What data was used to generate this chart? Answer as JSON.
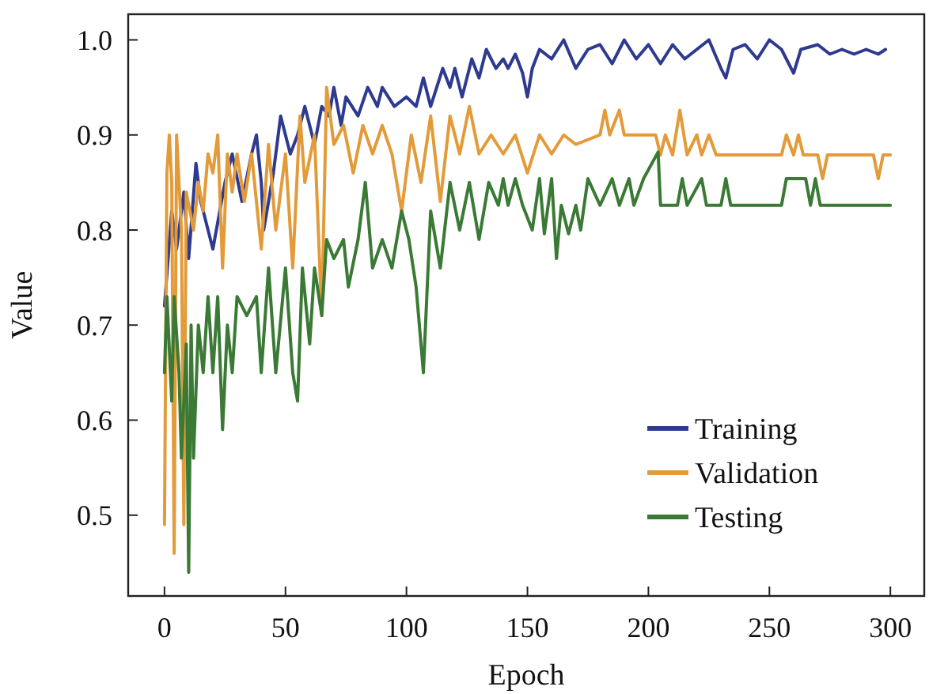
{
  "chart_data": {
    "type": "line",
    "xlabel": "Epoch",
    "ylabel": "Value",
    "xlim": [
      -15,
      314
    ],
    "ylim": [
      0.415,
      1.027
    ],
    "xticks": [
      0,
      50,
      100,
      150,
      200,
      250,
      300
    ],
    "yticks": [
      {
        "value": 0.5,
        "label": "0.5"
      },
      {
        "value": 0.6,
        "label": "0.6"
      },
      {
        "value": 0.7,
        "label": "0.7"
      },
      {
        "value": 0.8,
        "label": "0.8"
      },
      {
        "value": 0.9,
        "label": "0.9"
      },
      {
        "value": 1.0,
        "label": "1.0"
      }
    ],
    "grid": false,
    "legend": "bottom right",
    "marker": "none",
    "line_style": "solid",
    "series": [
      {
        "name": "Training",
        "color": "#2e3a8f",
        "x": [
          0,
          3,
          5,
          8,
          10,
          13,
          15,
          20,
          25,
          28,
          32,
          36,
          38,
          40,
          41,
          45,
          48,
          52,
          55,
          58,
          62,
          65,
          68,
          70,
          73,
          75,
          80,
          84,
          88,
          90,
          95,
          100,
          104,
          107,
          110,
          115,
          118,
          120,
          123,
          127,
          130,
          133,
          137,
          140,
          142,
          145,
          148,
          150,
          152,
          155,
          160,
          165,
          170,
          175,
          180,
          185,
          190,
          195,
          200,
          205,
          210,
          215,
          220,
          225,
          230,
          232,
          235,
          240,
          245,
          250,
          255,
          260,
          263,
          270,
          275,
          280,
          285,
          290,
          295,
          298
        ],
        "values": [
          0.72,
          0.82,
          0.78,
          0.84,
          0.77,
          0.87,
          0.83,
          0.78,
          0.85,
          0.88,
          0.83,
          0.88,
          0.9,
          0.85,
          0.8,
          0.86,
          0.92,
          0.88,
          0.9,
          0.93,
          0.89,
          0.93,
          0.92,
          0.95,
          0.91,
          0.94,
          0.92,
          0.95,
          0.93,
          0.95,
          0.93,
          0.94,
          0.93,
          0.96,
          0.93,
          0.97,
          0.95,
          0.97,
          0.94,
          0.98,
          0.96,
          0.99,
          0.97,
          0.98,
          0.97,
          0.985,
          0.965,
          0.94,
          0.97,
          0.99,
          0.98,
          1.0,
          0.97,
          0.99,
          0.995,
          0.975,
          1.0,
          0.98,
          0.995,
          0.975,
          0.995,
          0.98,
          0.99,
          1.0,
          0.97,
          0.96,
          0.99,
          0.995,
          0.98,
          1.0,
          0.99,
          0.965,
          0.99,
          0.995,
          0.985,
          0.99,
          0.985,
          0.99,
          0.985,
          0.99
        ]
      },
      {
        "name": "Validation",
        "color": "#e39b3a",
        "x": [
          0,
          1,
          2,
          3,
          4,
          5,
          7,
          8,
          9,
          12,
          14,
          16,
          18,
          20,
          22,
          24,
          26,
          28,
          30,
          33,
          36,
          40,
          43,
          46,
          50,
          53,
          56,
          58,
          62,
          65,
          67,
          70,
          74,
          78,
          82,
          86,
          90,
          94,
          98,
          102,
          106,
          110,
          114,
          118,
          122,
          126,
          130,
          135,
          140,
          145,
          150,
          155,
          160,
          165,
          170,
          180,
          182,
          184,
          188,
          190,
          203,
          205,
          207,
          210,
          213,
          216,
          220,
          222,
          225,
          228,
          255,
          257,
          260,
          262,
          264,
          270,
          272,
          274,
          293,
          295,
          297,
          300
        ],
        "values": [
          0.49,
          0.86,
          0.9,
          0.85,
          0.46,
          0.9,
          0.8,
          0.49,
          0.84,
          0.8,
          0.85,
          0.82,
          0.88,
          0.86,
          0.9,
          0.76,
          0.88,
          0.84,
          0.88,
          0.83,
          0.88,
          0.78,
          0.89,
          0.8,
          0.88,
          0.76,
          0.92,
          0.85,
          0.9,
          0.71,
          0.95,
          0.89,
          0.91,
          0.86,
          0.91,
          0.88,
          0.91,
          0.88,
          0.82,
          0.9,
          0.85,
          0.92,
          0.83,
          0.92,
          0.88,
          0.93,
          0.88,
          0.9,
          0.88,
          0.9,
          0.86,
          0.9,
          0.88,
          0.9,
          0.89,
          0.9,
          0.926,
          0.9,
          0.926,
          0.9,
          0.9,
          0.879,
          0.9,
          0.879,
          0.926,
          0.879,
          0.9,
          0.879,
          0.9,
          0.879,
          0.879,
          0.9,
          0.879,
          0.9,
          0.879,
          0.879,
          0.854,
          0.879,
          0.879,
          0.854,
          0.879,
          0.879
        ]
      },
      {
        "name": "Testing",
        "color": "#3a7a35",
        "x": [
          0,
          1,
          3,
          4,
          6,
          7,
          9,
          10,
          11,
          12,
          14,
          16,
          18,
          20,
          22,
          24,
          26,
          28,
          30,
          34,
          38,
          40,
          43,
          46,
          50,
          53,
          55,
          57,
          60,
          62,
          65,
          67,
          70,
          74,
          76,
          80,
          83,
          86,
          90,
          94,
          98,
          101,
          104,
          107,
          110,
          114,
          118,
          122,
          126,
          130,
          134,
          138,
          140,
          142,
          145,
          148,
          152,
          155,
          157,
          160,
          162,
          164,
          167,
          170,
          172,
          175,
          180,
          185,
          188,
          192,
          194,
          198,
          204,
          205,
          212,
          214,
          216,
          222,
          224,
          230,
          232,
          234,
          255,
          257,
          265,
          267,
          269,
          271,
          300
        ],
        "values": [
          0.65,
          0.73,
          0.62,
          0.73,
          0.65,
          0.56,
          0.68,
          0.44,
          0.7,
          0.56,
          0.7,
          0.65,
          0.73,
          0.65,
          0.73,
          0.59,
          0.7,
          0.65,
          0.73,
          0.71,
          0.73,
          0.65,
          0.76,
          0.65,
          0.76,
          0.65,
          0.62,
          0.76,
          0.68,
          0.76,
          0.71,
          0.79,
          0.77,
          0.79,
          0.74,
          0.79,
          0.85,
          0.76,
          0.79,
          0.76,
          0.82,
          0.79,
          0.74,
          0.65,
          0.82,
          0.76,
          0.85,
          0.8,
          0.85,
          0.79,
          0.85,
          0.826,
          0.854,
          0.826,
          0.854,
          0.826,
          0.8,
          0.854,
          0.796,
          0.854,
          0.77,
          0.826,
          0.796,
          0.826,
          0.8,
          0.854,
          0.826,
          0.854,
          0.826,
          0.854,
          0.826,
          0.854,
          0.882,
          0.826,
          0.826,
          0.854,
          0.826,
          0.854,
          0.826,
          0.826,
          0.854,
          0.826,
          0.826,
          0.854,
          0.854,
          0.826,
          0.854,
          0.826,
          0.826
        ]
      }
    ]
  }
}
